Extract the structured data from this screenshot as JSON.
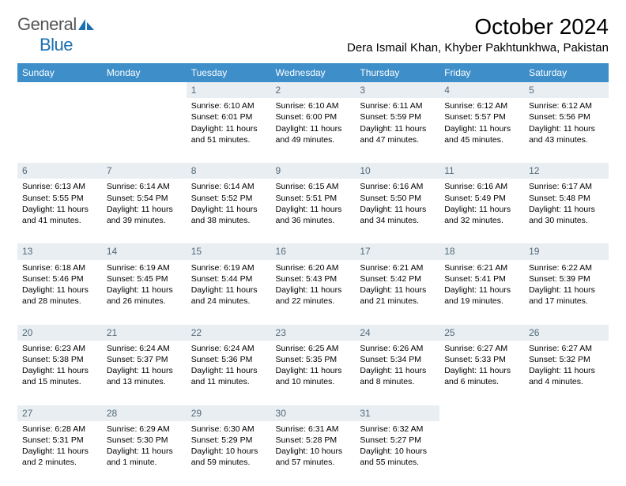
{
  "brand": {
    "part1": "General",
    "part2": "Blue"
  },
  "title": "October 2024",
  "location": "Dera Ismail Khan, Khyber Pakhtunkhwa, Pakistan",
  "colors": {
    "header_bg": "#3d8ec9",
    "daynum_bg": "#e8eef2",
    "daynum_text": "#546a79",
    "brand_blue": "#1a6fb0"
  },
  "weekdays": [
    "Sunday",
    "Monday",
    "Tuesday",
    "Wednesday",
    "Thursday",
    "Friday",
    "Saturday"
  ],
  "weeks": [
    [
      null,
      null,
      {
        "n": "1",
        "sr": "Sunrise: 6:10 AM",
        "ss": "Sunset: 6:01 PM",
        "dl1": "Daylight: 11 hours",
        "dl2": "and 51 minutes."
      },
      {
        "n": "2",
        "sr": "Sunrise: 6:10 AM",
        "ss": "Sunset: 6:00 PM",
        "dl1": "Daylight: 11 hours",
        "dl2": "and 49 minutes."
      },
      {
        "n": "3",
        "sr": "Sunrise: 6:11 AM",
        "ss": "Sunset: 5:59 PM",
        "dl1": "Daylight: 11 hours",
        "dl2": "and 47 minutes."
      },
      {
        "n": "4",
        "sr": "Sunrise: 6:12 AM",
        "ss": "Sunset: 5:57 PM",
        "dl1": "Daylight: 11 hours",
        "dl2": "and 45 minutes."
      },
      {
        "n": "5",
        "sr": "Sunrise: 6:12 AM",
        "ss": "Sunset: 5:56 PM",
        "dl1": "Daylight: 11 hours",
        "dl2": "and 43 minutes."
      }
    ],
    [
      {
        "n": "6",
        "sr": "Sunrise: 6:13 AM",
        "ss": "Sunset: 5:55 PM",
        "dl1": "Daylight: 11 hours",
        "dl2": "and 41 minutes."
      },
      {
        "n": "7",
        "sr": "Sunrise: 6:14 AM",
        "ss": "Sunset: 5:54 PM",
        "dl1": "Daylight: 11 hours",
        "dl2": "and 39 minutes."
      },
      {
        "n": "8",
        "sr": "Sunrise: 6:14 AM",
        "ss": "Sunset: 5:52 PM",
        "dl1": "Daylight: 11 hours",
        "dl2": "and 38 minutes."
      },
      {
        "n": "9",
        "sr": "Sunrise: 6:15 AM",
        "ss": "Sunset: 5:51 PM",
        "dl1": "Daylight: 11 hours",
        "dl2": "and 36 minutes."
      },
      {
        "n": "10",
        "sr": "Sunrise: 6:16 AM",
        "ss": "Sunset: 5:50 PM",
        "dl1": "Daylight: 11 hours",
        "dl2": "and 34 minutes."
      },
      {
        "n": "11",
        "sr": "Sunrise: 6:16 AM",
        "ss": "Sunset: 5:49 PM",
        "dl1": "Daylight: 11 hours",
        "dl2": "and 32 minutes."
      },
      {
        "n": "12",
        "sr": "Sunrise: 6:17 AM",
        "ss": "Sunset: 5:48 PM",
        "dl1": "Daylight: 11 hours",
        "dl2": "and 30 minutes."
      }
    ],
    [
      {
        "n": "13",
        "sr": "Sunrise: 6:18 AM",
        "ss": "Sunset: 5:46 PM",
        "dl1": "Daylight: 11 hours",
        "dl2": "and 28 minutes."
      },
      {
        "n": "14",
        "sr": "Sunrise: 6:19 AM",
        "ss": "Sunset: 5:45 PM",
        "dl1": "Daylight: 11 hours",
        "dl2": "and 26 minutes."
      },
      {
        "n": "15",
        "sr": "Sunrise: 6:19 AM",
        "ss": "Sunset: 5:44 PM",
        "dl1": "Daylight: 11 hours",
        "dl2": "and 24 minutes."
      },
      {
        "n": "16",
        "sr": "Sunrise: 6:20 AM",
        "ss": "Sunset: 5:43 PM",
        "dl1": "Daylight: 11 hours",
        "dl2": "and 22 minutes."
      },
      {
        "n": "17",
        "sr": "Sunrise: 6:21 AM",
        "ss": "Sunset: 5:42 PM",
        "dl1": "Daylight: 11 hours",
        "dl2": "and 21 minutes."
      },
      {
        "n": "18",
        "sr": "Sunrise: 6:21 AM",
        "ss": "Sunset: 5:41 PM",
        "dl1": "Daylight: 11 hours",
        "dl2": "and 19 minutes."
      },
      {
        "n": "19",
        "sr": "Sunrise: 6:22 AM",
        "ss": "Sunset: 5:39 PM",
        "dl1": "Daylight: 11 hours",
        "dl2": "and 17 minutes."
      }
    ],
    [
      {
        "n": "20",
        "sr": "Sunrise: 6:23 AM",
        "ss": "Sunset: 5:38 PM",
        "dl1": "Daylight: 11 hours",
        "dl2": "and 15 minutes."
      },
      {
        "n": "21",
        "sr": "Sunrise: 6:24 AM",
        "ss": "Sunset: 5:37 PM",
        "dl1": "Daylight: 11 hours",
        "dl2": "and 13 minutes."
      },
      {
        "n": "22",
        "sr": "Sunrise: 6:24 AM",
        "ss": "Sunset: 5:36 PM",
        "dl1": "Daylight: 11 hours",
        "dl2": "and 11 minutes."
      },
      {
        "n": "23",
        "sr": "Sunrise: 6:25 AM",
        "ss": "Sunset: 5:35 PM",
        "dl1": "Daylight: 11 hours",
        "dl2": "and 10 minutes."
      },
      {
        "n": "24",
        "sr": "Sunrise: 6:26 AM",
        "ss": "Sunset: 5:34 PM",
        "dl1": "Daylight: 11 hours",
        "dl2": "and 8 minutes."
      },
      {
        "n": "25",
        "sr": "Sunrise: 6:27 AM",
        "ss": "Sunset: 5:33 PM",
        "dl1": "Daylight: 11 hours",
        "dl2": "and 6 minutes."
      },
      {
        "n": "26",
        "sr": "Sunrise: 6:27 AM",
        "ss": "Sunset: 5:32 PM",
        "dl1": "Daylight: 11 hours",
        "dl2": "and 4 minutes."
      }
    ],
    [
      {
        "n": "27",
        "sr": "Sunrise: 6:28 AM",
        "ss": "Sunset: 5:31 PM",
        "dl1": "Daylight: 11 hours",
        "dl2": "and 2 minutes."
      },
      {
        "n": "28",
        "sr": "Sunrise: 6:29 AM",
        "ss": "Sunset: 5:30 PM",
        "dl1": "Daylight: 11 hours",
        "dl2": "and 1 minute."
      },
      {
        "n": "29",
        "sr": "Sunrise: 6:30 AM",
        "ss": "Sunset: 5:29 PM",
        "dl1": "Daylight: 10 hours",
        "dl2": "and 59 minutes."
      },
      {
        "n": "30",
        "sr": "Sunrise: 6:31 AM",
        "ss": "Sunset: 5:28 PM",
        "dl1": "Daylight: 10 hours",
        "dl2": "and 57 minutes."
      },
      {
        "n": "31",
        "sr": "Sunrise: 6:32 AM",
        "ss": "Sunset: 5:27 PM",
        "dl1": "Daylight: 10 hours",
        "dl2": "and 55 minutes."
      },
      null,
      null
    ]
  ]
}
